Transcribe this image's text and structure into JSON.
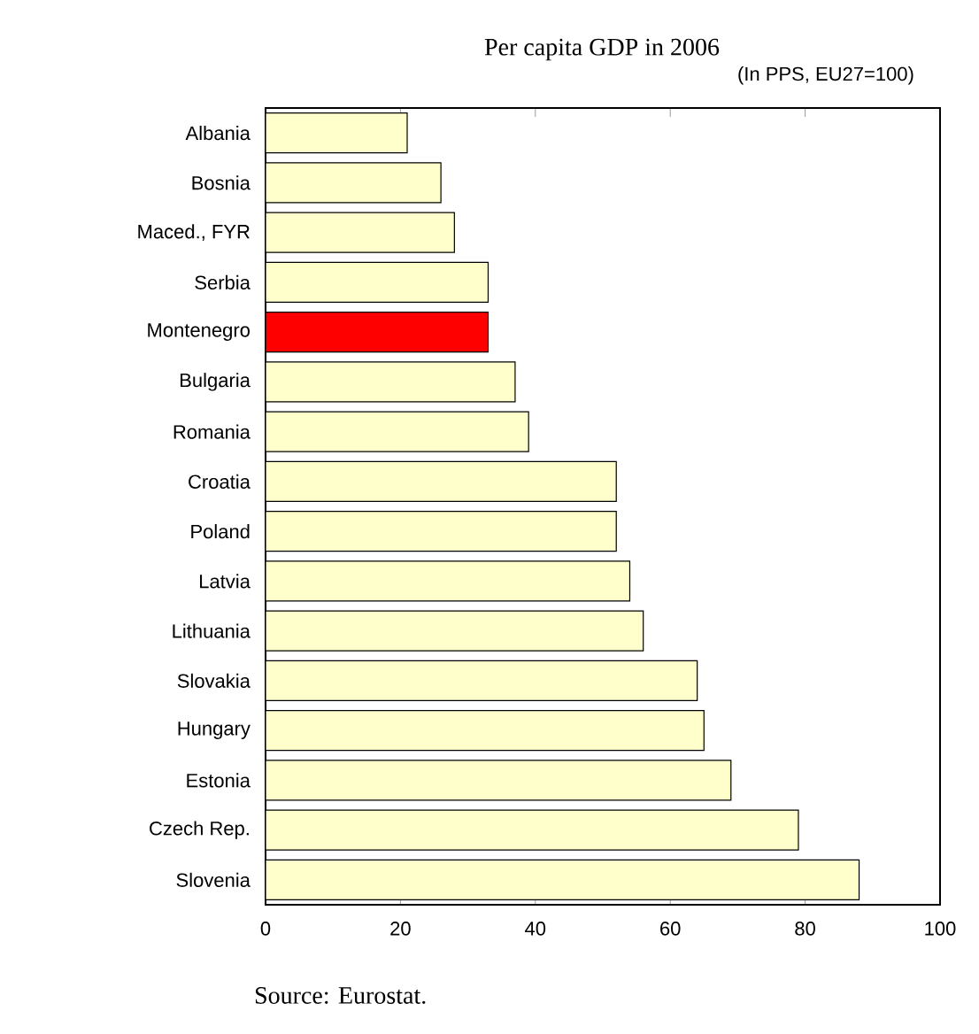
{
  "chart_data": {
    "type": "bar",
    "orientation": "horizontal",
    "title": "Per capita GDP in 2006",
    "annotations": [
      "(In PPS, EU27=100)",
      "Source: Eurostat."
    ],
    "categories": [
      "Albania",
      "Bosnia",
      "Maced., FYR",
      "Serbia",
      "Montenegro",
      "Bulgaria",
      "Romania",
      "Croatia",
      "Poland",
      "Latvia",
      "Lithuania",
      "Slovakia",
      "Hungary",
      "Estonia",
      "Czech Rep.",
      "Slovenia"
    ],
    "values": [
      21,
      26,
      28,
      33,
      33,
      37,
      39,
      52,
      52,
      54,
      56,
      64,
      65,
      69,
      79,
      88
    ],
    "colors": [
      "#ffffcc",
      "#ffffcc",
      "#ffffcc",
      "#ffffcc",
      "#ff0000",
      "#ffffcc",
      "#ffffcc",
      "#ffffcc",
      "#ffffcc",
      "#ffffcc",
      "#ffffcc",
      "#ffffcc",
      "#ffffcc",
      "#ffffcc",
      "#ffffcc",
      "#ffffcc"
    ],
    "xlim": [
      0,
      100
    ],
    "xticks": [
      0,
      20,
      40,
      60,
      80,
      100
    ]
  }
}
